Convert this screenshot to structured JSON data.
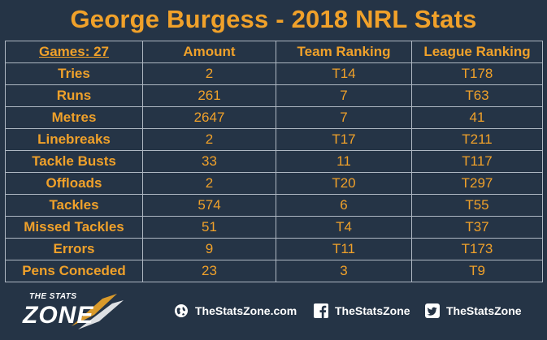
{
  "title": "George Burgess - 2018 NRL Stats",
  "table": {
    "headers": [
      "Games: 27",
      "Amount",
      "Team Ranking",
      "League Ranking"
    ],
    "rows": [
      [
        "Tries",
        "2",
        "T14",
        "T178"
      ],
      [
        "Runs",
        "261",
        "7",
        "T63"
      ],
      [
        "Metres",
        "2647",
        "7",
        "41"
      ],
      [
        "Linebreaks",
        "2",
        "T17",
        "T211"
      ],
      [
        "Tackle Busts",
        "33",
        "11",
        "T117"
      ],
      [
        "Offloads",
        "2",
        "T20",
        "T297"
      ],
      [
        "Tackles",
        "574",
        "6",
        "T55"
      ],
      [
        "Missed Tackles",
        "51",
        "T4",
        "T37"
      ],
      [
        "Errors",
        "9",
        "T11",
        "T173"
      ],
      [
        "Pens Conceded",
        "23",
        "3",
        "T9"
      ]
    ]
  },
  "footer": {
    "logo": {
      "line1": "THE STATS",
      "line2": "ZONE"
    },
    "social": [
      {
        "icon": "globe-icon",
        "text": "TheStatsZone.com"
      },
      {
        "icon": "facebook-icon",
        "text": "TheStatsZone"
      },
      {
        "icon": "twitter-icon",
        "text": "TheStatsZone"
      }
    ]
  },
  "colors": {
    "background": "#253446",
    "accent": "#f0a12a",
    "grid": "#aeb7c2"
  }
}
